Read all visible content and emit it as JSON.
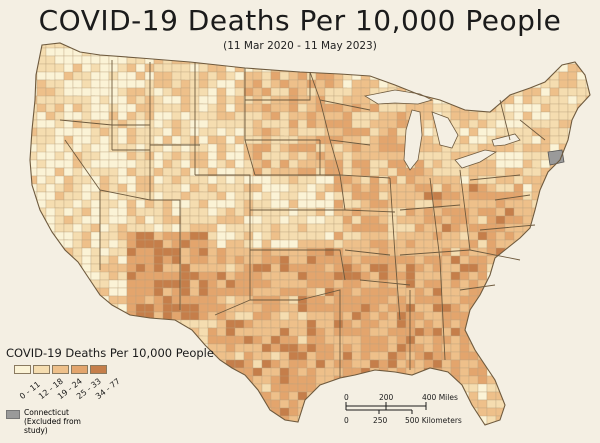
{
  "title": "COVID-19 Deaths Per 10,000 People",
  "subtitle": "(11 Mar 2020 - 11 May 2023)",
  "legend": {
    "title": "COVID-19 Deaths Per 10,000 People",
    "classes": [
      {
        "label": "0 - 11",
        "color": "#fbf3d6"
      },
      {
        "label": "12 - 18",
        "color": "#f5ddb0"
      },
      {
        "label": "19 - 24",
        "color": "#eec08a"
      },
      {
        "label": "25 - 33",
        "color": "#e3a56d"
      },
      {
        "label": "34 - 77",
        "color": "#c57e4a"
      }
    ],
    "excluded_label": "Connecticut (Excluded from study)",
    "excluded_color": "#9a9a9a"
  },
  "scale": {
    "miles_ticks": [
      "0",
      "200",
      "400 Miles"
    ],
    "km_ticks": [
      "0",
      "250",
      "500 Kilometers"
    ]
  },
  "colors": {
    "background": "#f4efe3",
    "county_border": "#b9a27e",
    "state_border": "#6e5a3e"
  }
}
